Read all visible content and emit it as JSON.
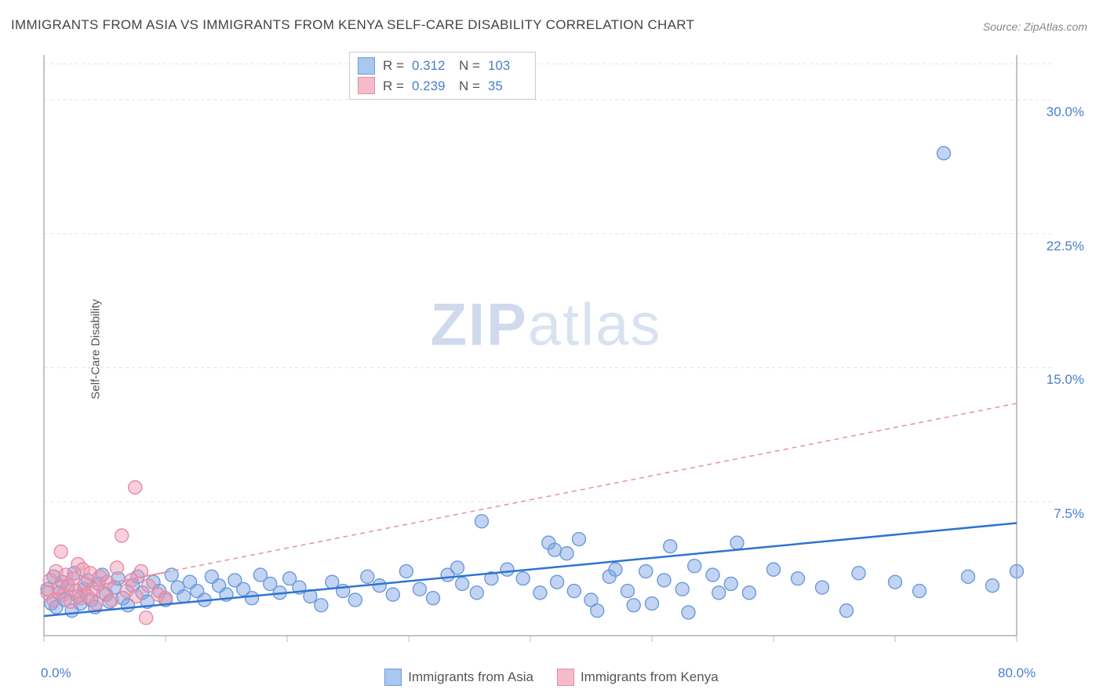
{
  "title": "IMMIGRANTS FROM ASIA VS IMMIGRANTS FROM KENYA SELF-CARE DISABILITY CORRELATION CHART",
  "source_label": "Source: ZipAtlas.com",
  "ylabel": "Self-Care Disability",
  "watermark_a": "ZIP",
  "watermark_b": "atlas",
  "chart": {
    "type": "scatter",
    "background_color": "#ffffff",
    "grid_color": "#e4e4e4",
    "axis_color": "#888888",
    "tick_color": "#bbbbbb",
    "xlim": [
      0,
      80
    ],
    "ylim": [
      0,
      32.5
    ],
    "xtick_positions": [
      0,
      10,
      20,
      30,
      40,
      50,
      60,
      70,
      80
    ],
    "xtick_labels_shown": {
      "0": "0.0%",
      "80": "80.0%"
    },
    "ytick_positions": [
      7.5,
      15.0,
      22.5,
      30.0
    ],
    "ytick_labels": [
      "7.5%",
      "15.0%",
      "22.5%",
      "30.0%"
    ],
    "ytick_extra_top": 32.0,
    "marker_radius": 8.5,
    "marker_stroke_width": 1.4,
    "trend_line_width": 2.5,
    "label_fontsize": 15,
    "tick_fontsize": 17,
    "tick_label_color": "#4a7ecc"
  },
  "series": {
    "asia": {
      "label": "Immigrants from Asia",
      "fill": "rgba(120,160,225,0.45)",
      "stroke": "#6a9add",
      "swatch_fill": "#aac7ee",
      "swatch_border": "#6a9add",
      "trend_color": "#2f74d0",
      "trend_dash": "",
      "R": "0.312",
      "N": "103",
      "trend": {
        "x1": 0,
        "y1": 1.1,
        "x2": 80,
        "y2": 6.3
      },
      "points": [
        [
          0.3,
          2.6
        ],
        [
          0.6,
          1.8
        ],
        [
          0.8,
          3.3
        ],
        [
          1.0,
          1.6
        ],
        [
          1.3,
          2.4
        ],
        [
          1.5,
          3.0
        ],
        [
          1.7,
          2.0
        ],
        [
          2.0,
          2.8
        ],
        [
          2.3,
          1.4
        ],
        [
          2.5,
          3.5
        ],
        [
          2.8,
          2.2
        ],
        [
          3.0,
          1.8
        ],
        [
          3.3,
          2.6
        ],
        [
          3.6,
          3.1
        ],
        [
          3.9,
          2.0
        ],
        [
          4.2,
          1.6
        ],
        [
          4.5,
          2.9
        ],
        [
          4.8,
          3.4
        ],
        [
          5.1,
          2.3
        ],
        [
          5.4,
          1.9
        ],
        [
          5.8,
          2.7
        ],
        [
          6.1,
          3.2
        ],
        [
          6.5,
          2.1
        ],
        [
          6.9,
          1.7
        ],
        [
          7.3,
          2.8
        ],
        [
          7.7,
          3.3
        ],
        [
          8.1,
          2.4
        ],
        [
          8.5,
          1.9
        ],
        [
          9.0,
          3.0
        ],
        [
          9.5,
          2.5
        ],
        [
          10.0,
          2.0
        ],
        [
          10.5,
          3.4
        ],
        [
          11.0,
          2.7
        ],
        [
          11.5,
          2.2
        ],
        [
          12.0,
          3.0
        ],
        [
          12.6,
          2.5
        ],
        [
          13.2,
          2.0
        ],
        [
          13.8,
          3.3
        ],
        [
          14.4,
          2.8
        ],
        [
          15.0,
          2.3
        ],
        [
          15.7,
          3.1
        ],
        [
          16.4,
          2.6
        ],
        [
          17.1,
          2.1
        ],
        [
          17.8,
          3.4
        ],
        [
          18.6,
          2.9
        ],
        [
          19.4,
          2.4
        ],
        [
          20.2,
          3.2
        ],
        [
          21.0,
          2.7
        ],
        [
          21.9,
          2.2
        ],
        [
          22.8,
          1.7
        ],
        [
          23.7,
          3.0
        ],
        [
          24.6,
          2.5
        ],
        [
          25.6,
          2.0
        ],
        [
          26.6,
          3.3
        ],
        [
          27.6,
          2.8
        ],
        [
          28.7,
          2.3
        ],
        [
          29.8,
          3.6
        ],
        [
          30.9,
          2.6
        ],
        [
          32.0,
          2.1
        ],
        [
          33.2,
          3.4
        ],
        [
          34.0,
          3.8
        ],
        [
          34.4,
          2.9
        ],
        [
          35.6,
          2.4
        ],
        [
          36.0,
          6.4
        ],
        [
          36.8,
          3.2
        ],
        [
          38.1,
          3.7
        ],
        [
          39.4,
          3.2
        ],
        [
          40.8,
          2.4
        ],
        [
          41.5,
          5.2
        ],
        [
          42.0,
          4.8
        ],
        [
          42.2,
          3.0
        ],
        [
          43.0,
          4.6
        ],
        [
          43.6,
          2.5
        ],
        [
          44.0,
          5.4
        ],
        [
          45.0,
          2.0
        ],
        [
          45.5,
          1.4
        ],
        [
          46.5,
          3.3
        ],
        [
          47.0,
          3.7
        ],
        [
          48.0,
          2.5
        ],
        [
          48.5,
          1.7
        ],
        [
          49.5,
          3.6
        ],
        [
          50.0,
          1.8
        ],
        [
          51.0,
          3.1
        ],
        [
          51.5,
          5.0
        ],
        [
          52.5,
          2.6
        ],
        [
          53.0,
          1.3
        ],
        [
          53.5,
          3.9
        ],
        [
          55.0,
          3.4
        ],
        [
          55.5,
          2.4
        ],
        [
          56.5,
          2.9
        ],
        [
          57.0,
          5.2
        ],
        [
          58.0,
          2.4
        ],
        [
          60.0,
          3.7
        ],
        [
          62.0,
          3.2
        ],
        [
          64.0,
          2.7
        ],
        [
          66.0,
          1.4
        ],
        [
          67.0,
          3.5
        ],
        [
          70.0,
          3.0
        ],
        [
          72.0,
          2.5
        ],
        [
          74.0,
          27.0
        ],
        [
          76.0,
          3.3
        ],
        [
          78.0,
          2.8
        ],
        [
          80.0,
          3.6
        ]
      ]
    },
    "kenya": {
      "label": "Immigrants from Kenya",
      "fill": "rgba(240,150,175,0.45)",
      "stroke": "#e68aa5",
      "swatch_fill": "#f4bccb",
      "swatch_border": "#e68aa5",
      "trend_color": "#e88fa8",
      "trend_solid_until": 10,
      "trend_dash": "6 5",
      "R": "0.239",
      "N": "35",
      "trend": {
        "x1": 0,
        "y1": 2.2,
        "x2": 80,
        "y2": 13.0
      },
      "points": [
        [
          0.3,
          2.4
        ],
        [
          0.5,
          3.1
        ],
        [
          0.8,
          2.0
        ],
        [
          1.0,
          3.6
        ],
        [
          1.2,
          2.7
        ],
        [
          1.4,
          4.7
        ],
        [
          1.6,
          2.3
        ],
        [
          1.8,
          3.4
        ],
        [
          2.0,
          2.8
        ],
        [
          2.2,
          1.9
        ],
        [
          2.4,
          3.2
        ],
        [
          2.6,
          2.5
        ],
        [
          2.8,
          4.0
        ],
        [
          3.0,
          2.1
        ],
        [
          3.2,
          3.7
        ],
        [
          3.4,
          2.9
        ],
        [
          3.6,
          2.2
        ],
        [
          3.8,
          3.5
        ],
        [
          4.0,
          2.6
        ],
        [
          4.3,
          1.8
        ],
        [
          4.6,
          3.3
        ],
        [
          4.9,
          2.4
        ],
        [
          5.2,
          3.0
        ],
        [
          5.6,
          2.0
        ],
        [
          6.0,
          3.8
        ],
        [
          6.4,
          5.6
        ],
        [
          6.8,
          2.5
        ],
        [
          7.2,
          3.1
        ],
        [
          7.5,
          8.3
        ],
        [
          7.6,
          2.2
        ],
        [
          8.0,
          3.6
        ],
        [
          8.4,
          1.0
        ],
        [
          8.6,
          2.8
        ],
        [
          9.4,
          2.3
        ],
        [
          10.0,
          2.1
        ]
      ]
    }
  },
  "stats_box": {
    "r_label": "R =",
    "n_label": "N ="
  },
  "bottom_legend": {
    "asia": "Immigrants from Asia",
    "kenya": "Immigrants from Kenya"
  }
}
